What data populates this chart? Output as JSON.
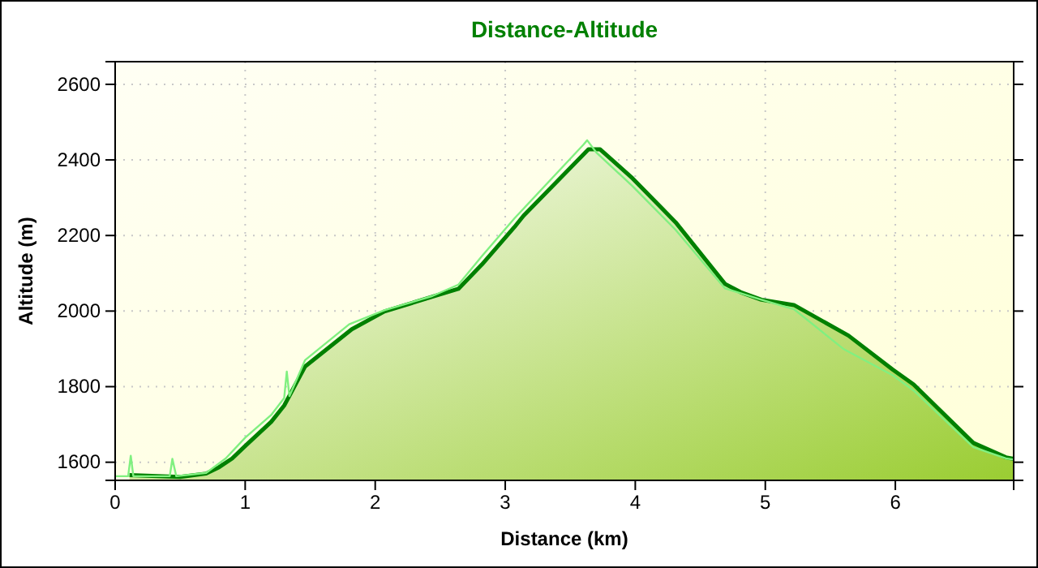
{
  "chart_data": {
    "type": "area",
    "title": "Distance-Altitude",
    "xlabel": "Distance (km)",
    "ylabel": "Altitude (m)",
    "xlim": [
      0,
      6.91
    ],
    "ylim": [
      1552,
      2660
    ],
    "xticks": [
      0,
      1,
      2,
      3,
      4,
      5,
      6
    ],
    "yticks": [
      1600,
      1800,
      2000,
      2200,
      2400,
      2600
    ],
    "grid": true,
    "series": [
      {
        "color": "#008000",
        "x": [
          0.11,
          0.5,
          0.7,
          0.8,
          0.9,
          1.0,
          1.2,
          1.3,
          1.46,
          1.82,
          2.07,
          2.44,
          2.64,
          2.82,
          3.07,
          3.14,
          3.64,
          3.73,
          3.98,
          4.31,
          4.69,
          4.81,
          4.97,
          5.22,
          5.64,
          5.98,
          6.14,
          6.6,
          6.85,
          6.91
        ],
        "values": [
          1566,
          1561,
          1570,
          1587,
          1610,
          1643,
          1707,
          1750,
          1853,
          1952,
          1999,
          2038,
          2059,
          2123,
          2222,
          2252,
          2428,
          2428,
          2351,
          2235,
          2072,
          2050,
          2030,
          2016,
          1935,
          1845,
          1806,
          1651,
          1613,
          1609
        ]
      },
      {
        "type": "line",
        "color": "#80f080",
        "x": [
          0,
          0.1,
          0.12,
          0.14,
          0.42,
          0.44,
          0.47,
          0.7,
          0.85,
          1.0,
          1.2,
          1.3,
          1.32,
          1.34,
          1.46,
          1.8,
          2.07,
          2.44,
          2.64,
          2.82,
          3.07,
          3.6,
          3.63,
          3.7,
          3.98,
          4.31,
          4.69,
          4.97,
          5.22,
          5.6,
          5.98,
          6.14,
          6.6,
          6.85,
          6.91
        ],
        "values": [
          1563,
          1563,
          1617,
          1563,
          1563,
          1609,
          1563,
          1572,
          1610,
          1665,
          1725,
          1770,
          1840,
          1775,
          1870,
          1965,
          2002,
          2040,
          2070,
          2145,
          2245,
          2440,
          2452,
          2420,
          2330,
          2215,
          2060,
          2030,
          2005,
          1900,
          1830,
          1790,
          1640,
          1610,
          1607
        ]
      }
    ]
  }
}
